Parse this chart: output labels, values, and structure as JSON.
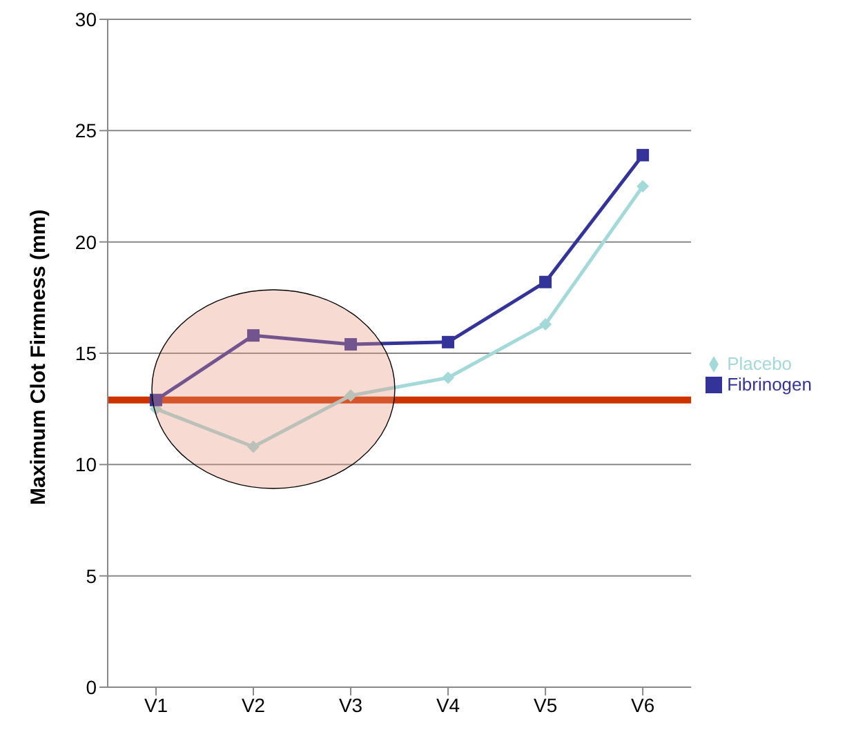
{
  "chart_data": {
    "type": "line",
    "ylabel": "Maximum Clot Firmness (mm)",
    "categories": [
      "V1",
      "V2",
      "V3",
      "V4",
      "V5",
      "V6"
    ],
    "series": [
      {
        "name": "Placebo",
        "color": "#a3d9d9",
        "marker": "diamond",
        "values": [
          12.5,
          10.8,
          13.1,
          13.9,
          16.3,
          22.5
        ]
      },
      {
        "name": "Fibrinogen",
        "color": "#333399",
        "marker": "square",
        "values": [
          12.9,
          15.8,
          15.4,
          15.5,
          18.2,
          23.9
        ]
      }
    ],
    "ylim": [
      0,
      30
    ],
    "yticks": [
      0,
      5,
      10,
      15,
      20,
      25,
      30
    ],
    "grid": "y",
    "legend": "right",
    "ref_lines": [
      {
        "axis": "y",
        "value": 12.9,
        "color": "#cc3300"
      }
    ]
  }
}
